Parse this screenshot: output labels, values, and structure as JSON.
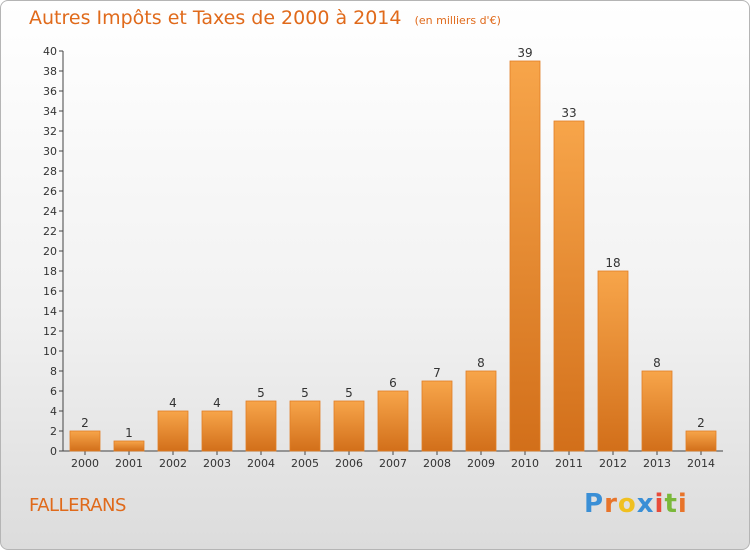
{
  "title": "Autres Impôts et Taxes de 2000 à 2014",
  "unit": "(en milliers d'€)",
  "place": "FALLERANS",
  "brand": "Proxiti",
  "colors": {
    "bar": "#f39a3c",
    "bar_dark": "#d8741e",
    "title": "#e06a1b"
  },
  "chart_data": {
    "type": "bar",
    "title": "Autres Impôts et Taxes de 2000 à 2014",
    "unit": "(en milliers d'€)",
    "categories": [
      "2000",
      "2001",
      "2002",
      "2003",
      "2004",
      "2005",
      "2006",
      "2007",
      "2008",
      "2009",
      "2010",
      "2011",
      "2012",
      "2013",
      "2014"
    ],
    "values": [
      2,
      1,
      4,
      4,
      5,
      5,
      5,
      6,
      7,
      8,
      39,
      33,
      18,
      8,
      2
    ],
    "ylim": [
      0,
      40
    ],
    "yticks": [
      0,
      2,
      4,
      6,
      8,
      10,
      12,
      14,
      16,
      18,
      20,
      22,
      24,
      26,
      28,
      30,
      32,
      34,
      36,
      38,
      40
    ],
    "grid": false,
    "legend": "none"
  }
}
